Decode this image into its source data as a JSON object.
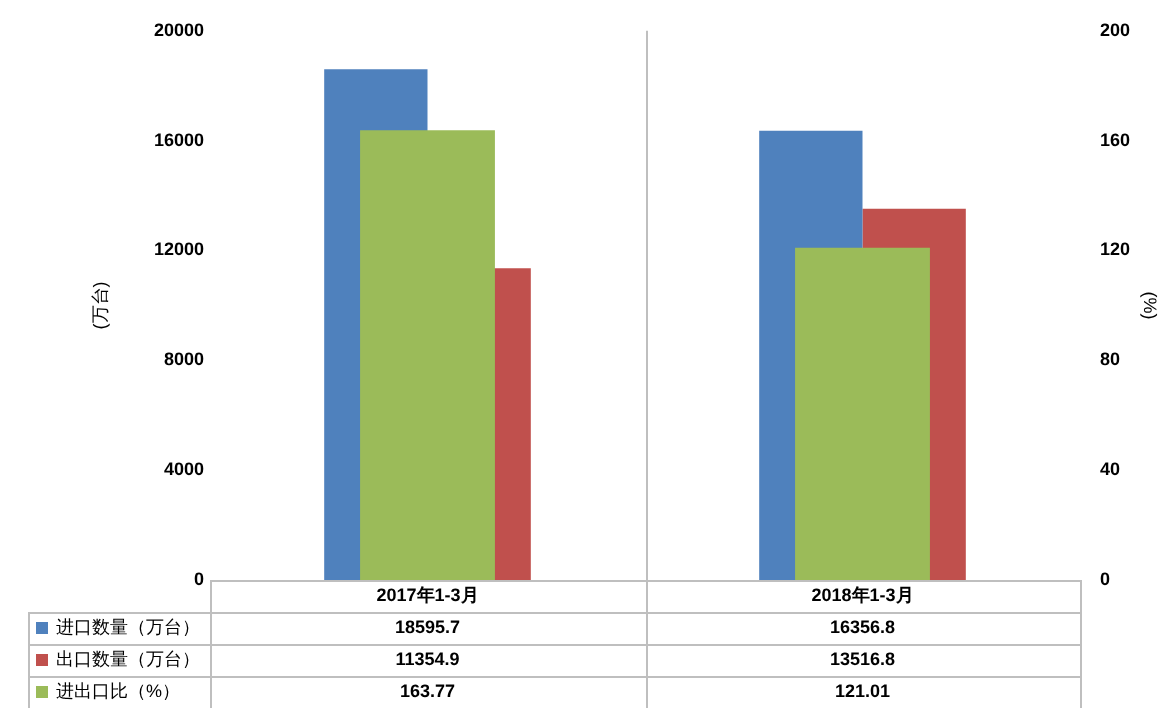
{
  "chart_data": {
    "type": "bar",
    "categories": [
      "2017年1-3月",
      "2018年1-3月"
    ],
    "series": [
      {
        "name": "进口数量（万台）",
        "color": "#4f81bd",
        "values": [
          18595.7,
          16356.8
        ]
      },
      {
        "name": "出口数量（万台）",
        "color": "#c0504d",
        "values": [
          11354.9,
          13516.8
        ]
      },
      {
        "name": "进出口比（%）",
        "color": "#9bbb59",
        "values": [
          163.77,
          121.01
        ],
        "axis": "y2"
      }
    ],
    "ylabel": "(万台)",
    "y2label": "(%)",
    "ylim": [
      0,
      20000
    ],
    "yticks": [
      0,
      4000,
      8000,
      12000,
      16000,
      20000
    ],
    "y2lim": [
      0,
      200
    ],
    "y2ticks": [
      0,
      40,
      80,
      120,
      160,
      200
    ],
    "data_labels": true,
    "legend": "bottom",
    "grid": false
  }
}
